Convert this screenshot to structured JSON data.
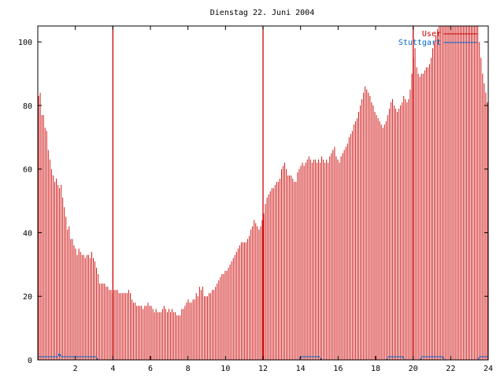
{
  "chart_data": {
    "type": "bar",
    "title": "Dienstag 22. Juni 2004",
    "xlabel": "",
    "ylabel": "",
    "xlim": [
      0,
      24
    ],
    "ylim": [
      0,
      105
    ],
    "grid": false,
    "legend_position": "top-right",
    "x_ticks": [
      2,
      4,
      6,
      8,
      10,
      12,
      14,
      16,
      18,
      20,
      22,
      24
    ],
    "y_ticks": [
      0,
      20,
      40,
      60,
      80,
      100
    ],
    "series": [
      {
        "name": "User",
        "color": "#cc0000",
        "values": [
          83,
          84,
          77,
          77,
          73,
          72,
          66,
          63,
          60,
          58,
          56,
          57,
          55,
          54,
          55,
          51,
          48,
          45,
          41,
          42,
          38,
          38,
          36,
          35,
          33,
          35,
          34,
          33,
          33,
          32,
          33,
          33,
          32,
          34,
          32,
          31,
          29,
          27,
          24,
          24,
          24,
          24,
          23,
          23,
          22,
          22,
          21,
          22,
          22,
          22,
          21,
          21,
          21,
          21,
          21,
          21,
          22,
          21,
          19,
          18,
          18,
          17,
          17,
          17,
          17,
          16,
          17,
          17,
          18,
          17,
          17,
          16,
          15,
          16,
          15,
          15,
          15,
          16,
          17,
          16,
          15,
          16,
          15,
          16,
          15,
          15,
          14,
          14,
          14,
          16,
          16,
          17,
          18,
          19,
          18,
          18,
          19,
          19,
          21,
          20,
          23,
          22,
          23,
          20,
          20,
          20,
          21,
          21,
          22,
          22,
          23,
          24,
          25,
          26,
          27,
          27,
          28,
          28,
          29,
          30,
          31,
          32,
          33,
          34,
          35,
          36,
          37,
          37,
          37,
          37,
          38,
          39,
          41,
          42,
          44,
          43,
          42,
          41,
          42,
          44,
          46,
          49,
          51,
          52,
          53,
          54,
          54,
          55,
          56,
          56,
          57,
          60,
          61,
          62,
          60,
          58,
          58,
          58,
          57,
          56,
          56,
          59,
          60,
          61,
          62,
          61,
          62,
          63,
          64,
          63,
          62,
          63,
          63,
          62,
          63,
          62,
          64,
          63,
          62,
          63,
          62,
          64,
          65,
          66,
          67,
          64,
          63,
          62,
          64,
          65,
          66,
          67,
          68,
          70,
          71,
          72,
          74,
          75,
          76,
          78,
          80,
          82,
          84,
          86,
          85,
          84,
          83,
          81,
          80,
          78,
          77,
          76,
          75,
          74,
          73,
          74,
          75,
          77,
          79,
          81,
          82,
          80,
          79,
          78,
          79,
          80,
          81,
          83,
          82,
          81,
          82,
          85,
          90,
          95,
          98,
          92,
          90,
          89,
          90,
          90,
          91,
          92,
          92,
          93,
          95,
          98,
          100,
          102,
          104,
          105,
          105,
          105,
          105,
          105,
          105,
          105,
          105,
          105,
          105,
          105,
          105,
          105,
          105,
          105,
          105,
          105,
          105,
          105,
          105,
          105,
          105,
          105,
          105,
          105,
          100,
          95,
          90,
          87,
          84,
          81
        ]
      },
      {
        "name": "Stuttgart",
        "color": "#0066cc",
        "values": [
          1,
          1,
          1,
          1,
          1,
          1,
          1,
          1,
          1,
          1,
          1,
          1,
          1,
          2,
          1,
          1,
          1,
          1,
          1,
          1,
          1,
          1,
          1,
          1,
          1,
          1,
          1,
          1,
          1,
          1,
          1,
          1,
          1,
          1,
          1,
          1,
          1,
          0,
          0,
          0,
          0,
          0,
          0,
          0,
          0,
          0,
          0,
          0,
          0,
          0,
          0,
          0,
          0,
          0,
          0,
          0,
          0,
          0,
          0,
          0,
          0,
          0,
          0,
          0,
          0,
          0,
          0,
          0,
          0,
          0,
          0,
          0,
          0,
          0,
          0,
          0,
          0,
          0,
          0,
          0,
          0,
          0,
          0,
          0,
          0,
          0,
          0,
          0,
          0,
          0,
          0,
          0,
          0,
          0,
          0,
          0,
          0,
          0,
          0,
          0,
          0,
          0,
          0,
          0,
          0,
          0,
          0,
          0,
          0,
          0,
          0,
          0,
          0,
          0,
          0,
          0,
          0,
          0,
          0,
          0,
          0,
          0,
          0,
          0,
          0,
          0,
          0,
          0,
          0,
          0,
          0,
          0,
          0,
          0,
          0,
          0,
          0,
          0,
          0,
          0,
          0,
          0,
          0,
          0,
          0,
          0,
          0,
          0,
          0,
          0,
          0,
          0,
          0,
          0,
          0,
          0,
          0,
          0,
          0,
          0,
          0,
          0,
          0,
          0,
          1,
          1,
          1,
          1,
          1,
          1,
          1,
          1,
          1,
          1,
          1,
          1,
          1,
          0,
          0,
          0,
          0,
          0,
          0,
          0,
          0,
          0,
          0,
          0,
          0,
          0,
          0,
          0,
          0,
          0,
          0,
          0,
          0,
          0,
          0,
          0,
          0,
          0,
          0,
          0,
          0,
          0,
          0,
          0,
          0,
          0,
          0,
          0,
          0,
          0,
          0,
          0,
          0,
          0,
          0,
          1,
          1,
          1,
          1,
          1,
          1,
          1,
          1,
          1,
          1,
          0,
          0,
          0,
          0,
          0,
          0,
          0,
          0,
          0,
          0,
          0,
          1,
          1,
          1,
          1,
          1,
          1,
          1,
          1,
          1,
          1,
          1,
          1,
          1,
          1,
          0,
          0,
          0,
          0,
          0,
          0,
          0,
          0,
          0,
          0,
          0,
          0,
          0,
          0,
          0,
          0,
          0,
          0,
          0,
          0,
          0,
          0,
          1,
          1,
          1,
          1,
          1,
          1
        ]
      }
    ],
    "markers": {
      "color": "#cc0000",
      "x": [
        4,
        12,
        20
      ]
    }
  }
}
